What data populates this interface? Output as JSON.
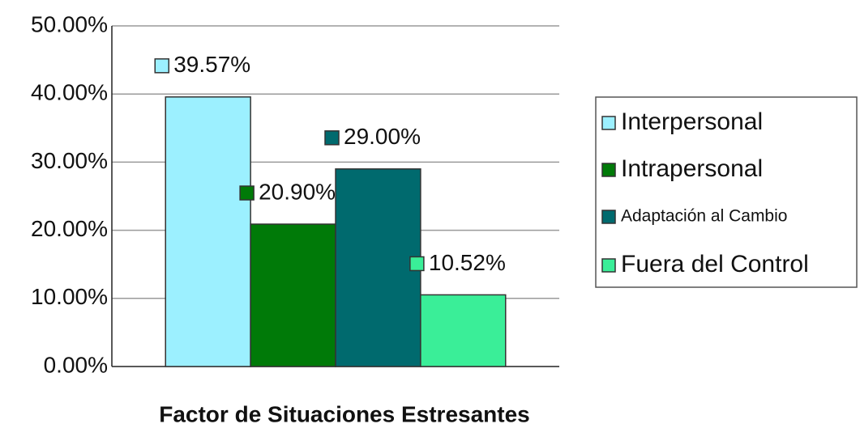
{
  "chart_data": {
    "type": "bar",
    "x_label": "Factor de Situaciones Estresantes",
    "categories": [
      null
    ],
    "series": [
      {
        "name": "Interpersonal",
        "color": "#9cf0ff",
        "values": [
          39.57
        ],
        "value_labels": [
          "39.57%"
        ]
      },
      {
        "name": "Intrapersonal",
        "color": "#007a08",
        "values": [
          20.9
        ],
        "value_labels": [
          "20.90%"
        ]
      },
      {
        "name": "Adaptación al Cambio",
        "color": "#006a6e",
        "values": [
          29.0
        ],
        "value_labels": [
          "29.00%"
        ]
      },
      {
        "name": "Fuera del Control",
        "color": "#3aee98",
        "values": [
          10.52
        ],
        "value_labels": [
          "10.52%"
        ]
      }
    ],
    "ylim": [
      0,
      50
    ],
    "yticks": [
      {
        "value": 0,
        "label": "0.00%"
      },
      {
        "value": 10,
        "label": "10.00%"
      },
      {
        "value": 20,
        "label": "20.00%"
      },
      {
        "value": 30,
        "label": "30.00%"
      },
      {
        "value": 40,
        "label": "40.00%"
      },
      {
        "value": 50,
        "label": "50.00%"
      }
    ],
    "grid": true,
    "legend": "right"
  }
}
